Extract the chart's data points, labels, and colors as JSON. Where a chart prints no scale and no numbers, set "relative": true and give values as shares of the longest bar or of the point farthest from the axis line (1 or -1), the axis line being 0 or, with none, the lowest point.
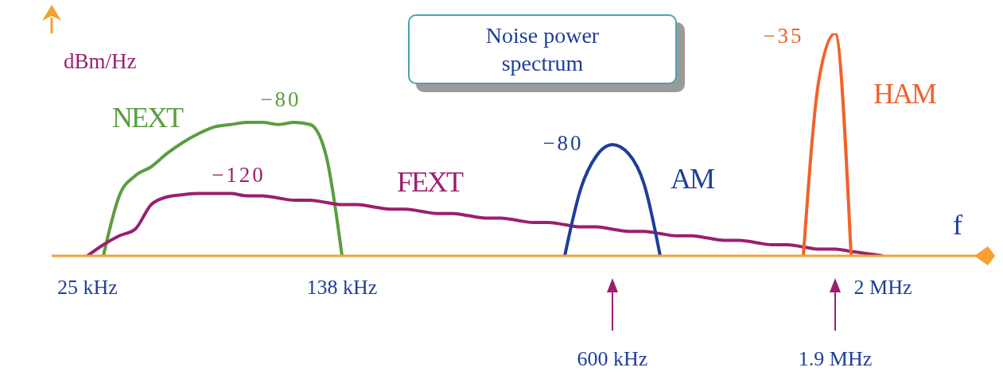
{
  "chart_data": {
    "type": "line",
    "title": "Noise power spectrum",
    "xlabel": "f",
    "ylabel": "dBm/Hz",
    "relative": true,
    "marker": "none",
    "line_style": "solid",
    "annotations": [
      "−80",
      "−120",
      "−80",
      "−35"
    ],
    "categories": [
      null,
      null,
      "25 kHz",
      null,
      null,
      null,
      null,
      null,
      null,
      null,
      null,
      null,
      null,
      null,
      null,
      null,
      null,
      null,
      "138 kHz",
      null,
      null,
      null,
      null,
      null,
      null,
      null,
      null,
      null,
      null,
      null,
      null,
      null,
      null,
      null,
      null,
      "600 kHz",
      null,
      null,
      null,
      null,
      null,
      null,
      null,
      null,
      null,
      null,
      null,
      null,
      null,
      "1.9 MHz",
      null,
      null,
      "2 MHz",
      null,
      null,
      null,
      null,
      null,
      null
    ],
    "series": [
      {
        "name": "NEXT",
        "color": "#5a9e3e",
        "values": [
          null,
          null,
          null,
          0,
          0.27,
          0.36,
          0.4,
          0.46,
          0.51,
          0.55,
          0.58,
          0.59,
          0.6,
          0.6,
          0.59,
          0.6,
          0.59,
          0.45,
          0,
          null,
          null,
          null,
          null,
          null,
          null,
          null,
          null,
          null,
          null,
          null,
          null,
          null,
          null,
          null,
          null,
          null,
          null,
          null,
          null,
          null,
          null,
          null,
          null,
          null,
          null,
          null,
          null,
          null,
          null,
          null,
          null,
          null,
          null,
          null,
          null,
          null,
          null,
          null,
          null
        ]
      },
      {
        "name": "FEXT",
        "color": "#9b1f6e",
        "values": [
          null,
          null,
          0,
          0.05,
          0.09,
          0.12,
          0.23,
          0.265,
          0.275,
          0.28,
          0.28,
          0.28,
          0.27,
          0.27,
          0.26,
          0.25,
          0.25,
          0.24,
          0.23,
          0.23,
          0.22,
          0.21,
          0.21,
          0.2,
          0.19,
          0.19,
          0.18,
          0.17,
          0.17,
          0.16,
          0.15,
          0.15,
          0.14,
          0.13,
          0.13,
          0.12,
          0.11,
          0.11,
          0.1,
          0.09,
          0.09,
          0.08,
          0.07,
          0.07,
          0.06,
          0.05,
          0.05,
          0.04,
          0.03,
          0.03,
          0.02,
          0.01,
          0,
          null,
          null,
          null,
          null,
          null,
          null
        ]
      },
      {
        "name": "AM",
        "color": "#1f3e9a",
        "values": [
          null,
          null,
          null,
          null,
          null,
          null,
          null,
          null,
          null,
          null,
          null,
          null,
          null,
          null,
          null,
          null,
          null,
          null,
          null,
          null,
          null,
          null,
          null,
          null,
          null,
          null,
          null,
          null,
          null,
          null,
          null,
          null,
          0,
          0.3,
          0.45,
          0.5,
          0.46,
          0.32,
          0,
          null,
          null,
          null,
          null,
          null,
          null,
          null,
          null,
          null,
          null,
          null,
          null,
          null,
          null,
          null,
          null,
          null,
          null,
          null,
          null
        ]
      },
      {
        "name": "HAM",
        "color": "#f0622a",
        "values": [
          null,
          null,
          null,
          null,
          null,
          null,
          null,
          null,
          null,
          null,
          null,
          null,
          null,
          null,
          null,
          null,
          null,
          null,
          null,
          null,
          null,
          null,
          null,
          null,
          null,
          null,
          null,
          null,
          null,
          null,
          null,
          null,
          null,
          null,
          null,
          null,
          null,
          null,
          null,
          null,
          null,
          null,
          null,
          null,
          null,
          null,
          null,
          0,
          0.8,
          1,
          0,
          null,
          null,
          null,
          null,
          null,
          null,
          null,
          null
        ]
      }
    ]
  }
}
